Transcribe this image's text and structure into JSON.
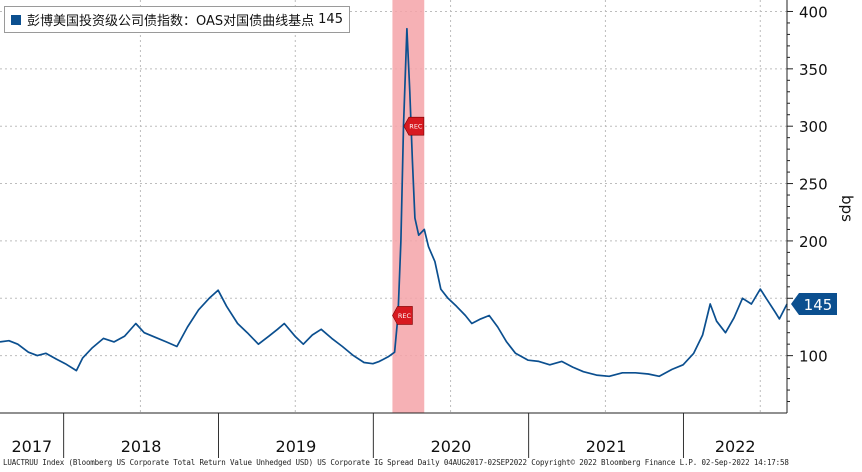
{
  "colors": {
    "line": "#0b4f8f",
    "recession": "#f5a3a8",
    "marker": "#d71920",
    "badge": "#0b4f8f"
  },
  "chart_data": {
    "type": "line",
    "title": "彭博美国投资级公司债指数：OAS对国债曲线基点",
    "ylabel": "bps",
    "ylim": [
      50,
      410
    ],
    "yticks": [
      100,
      150,
      200,
      250,
      300,
      350,
      400
    ],
    "y_axis_position": "right",
    "grid": true,
    "legend_placement": "top-left",
    "last_value": 145,
    "last_value_label": "145",
    "x_range": [
      "2017-08-04",
      "2022-09-02"
    ],
    "year_labels": [
      "2017",
      "2018",
      "2019",
      "2020",
      "2021",
      "2022"
    ],
    "recession_band": {
      "start": "2020-02-15",
      "end": "2020-04-30",
      "label": "REC"
    },
    "series": [
      {
        "name": "彭博美国投资级公司债指数：OAS对国债曲线基点",
        "points": [
          [
            "2017-08-04",
            112
          ],
          [
            "2017-08-25",
            113
          ],
          [
            "2017-09-15",
            110
          ],
          [
            "2017-10-10",
            103
          ],
          [
            "2017-10-31",
            100
          ],
          [
            "2017-11-20",
            102
          ],
          [
            "2017-12-15",
            97
          ],
          [
            "2018-01-05",
            93
          ],
          [
            "2018-01-31",
            87
          ],
          [
            "2018-02-15",
            98
          ],
          [
            "2018-03-10",
            107
          ],
          [
            "2018-04-05",
            115
          ],
          [
            "2018-04-30",
            112
          ],
          [
            "2018-05-25",
            117
          ],
          [
            "2018-06-20",
            128
          ],
          [
            "2018-07-10",
            120
          ],
          [
            "2018-08-05",
            116
          ],
          [
            "2018-08-31",
            112
          ],
          [
            "2018-09-25",
            108
          ],
          [
            "2018-10-20",
            125
          ],
          [
            "2018-11-15",
            140
          ],
          [
            "2018-12-10",
            150
          ],
          [
            "2018-12-31",
            157
          ],
          [
            "2019-01-20",
            143
          ],
          [
            "2019-02-15",
            128
          ],
          [
            "2019-03-10",
            120
          ],
          [
            "2019-04-05",
            110
          ],
          [
            "2019-04-30",
            117
          ],
          [
            "2019-05-20",
            123
          ],
          [
            "2019-06-05",
            128
          ],
          [
            "2019-06-30",
            117
          ],
          [
            "2019-07-20",
            110
          ],
          [
            "2019-08-10",
            118
          ],
          [
            "2019-08-31",
            123
          ],
          [
            "2019-09-25",
            115
          ],
          [
            "2019-10-20",
            108
          ],
          [
            "2019-11-15",
            100
          ],
          [
            "2019-12-10",
            94
          ],
          [
            "2019-12-31",
            93
          ],
          [
            "2020-01-15",
            95
          ],
          [
            "2020-02-05",
            99
          ],
          [
            "2020-02-20",
            103
          ],
          [
            "2020-02-28",
            135
          ],
          [
            "2020-03-06",
            200
          ],
          [
            "2020-03-12",
            300
          ],
          [
            "2020-03-20",
            385
          ],
          [
            "2020-03-27",
            330
          ],
          [
            "2020-04-02",
            270
          ],
          [
            "2020-04-08",
            220
          ],
          [
            "2020-04-17",
            205
          ],
          [
            "2020-04-30",
            210
          ],
          [
            "2020-05-10",
            195
          ],
          [
            "2020-05-25",
            182
          ],
          [
            "2020-06-08",
            158
          ],
          [
            "2020-06-25",
            150
          ],
          [
            "2020-07-15",
            143
          ],
          [
            "2020-08-05",
            135
          ],
          [
            "2020-08-20",
            128
          ],
          [
            "2020-09-10",
            132
          ],
          [
            "2020-09-30",
            135
          ],
          [
            "2020-10-20",
            125
          ],
          [
            "2020-11-10",
            112
          ],
          [
            "2020-12-01",
            102
          ],
          [
            "2020-12-31",
            96
          ],
          [
            "2021-01-25",
            95
          ],
          [
            "2021-02-20",
            92
          ],
          [
            "2021-03-20",
            95
          ],
          [
            "2021-04-15",
            90
          ],
          [
            "2021-05-10",
            86
          ],
          [
            "2021-06-10",
            83
          ],
          [
            "2021-07-10",
            82
          ],
          [
            "2021-08-10",
            85
          ],
          [
            "2021-09-10",
            85
          ],
          [
            "2021-10-10",
            84
          ],
          [
            "2021-11-05",
            82
          ],
          [
            "2021-12-05",
            88
          ],
          [
            "2021-12-31",
            92
          ],
          [
            "2022-01-25",
            102
          ],
          [
            "2022-02-15",
            118
          ],
          [
            "2022-03-05",
            145
          ],
          [
            "2022-03-20",
            130
          ],
          [
            "2022-04-10",
            120
          ],
          [
            "2022-04-30",
            133
          ],
          [
            "2022-05-20",
            150
          ],
          [
            "2022-06-10",
            145
          ],
          [
            "2022-07-01",
            158
          ],
          [
            "2022-07-15",
            150
          ],
          [
            "2022-08-05",
            138
          ],
          [
            "2022-08-15",
            132
          ],
          [
            "2022-09-02",
            145
          ]
        ]
      }
    ]
  },
  "footer": {
    "left_text": "LUACTRUU Index (Bloomberg US Corporate Total Return Value Unhedged USD) US Corporate IG Spread  Daily 04AUG2017-02SEP2022  Copyright© 2022 Bloomberg Finance L.P.   02-Sep-2022 14:17:58"
  }
}
